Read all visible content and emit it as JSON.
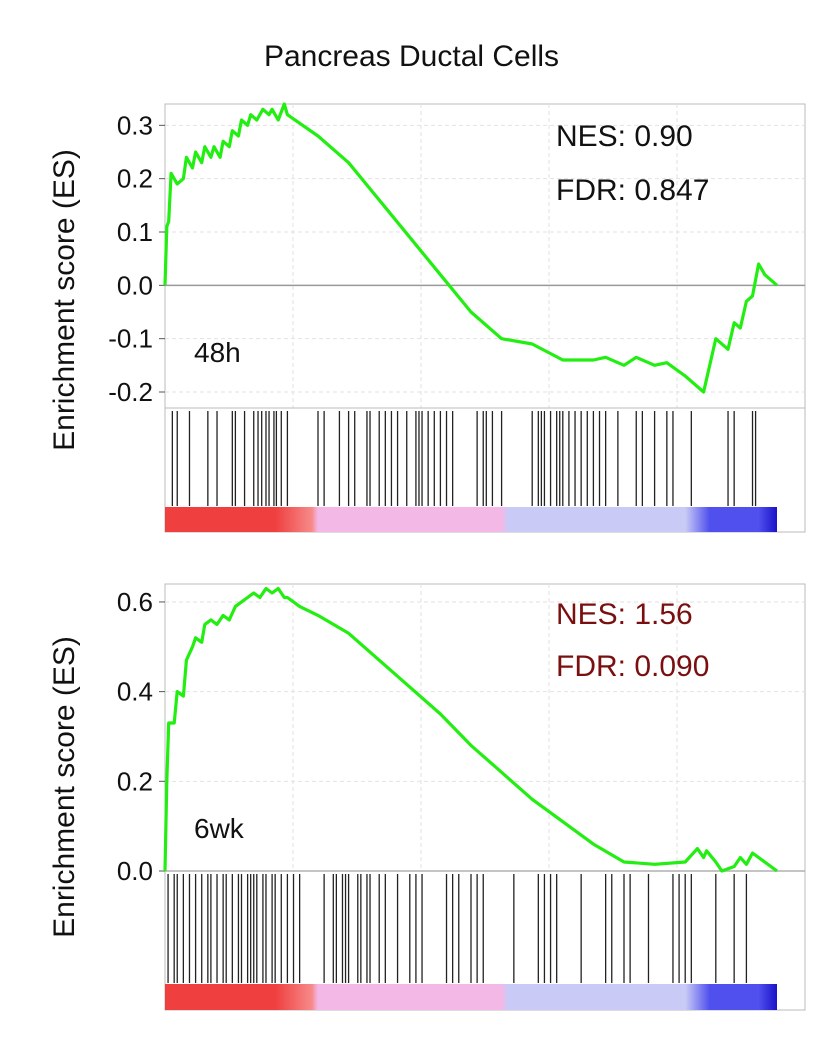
{
  "figure": {
    "title": "Pancreas Ductal Cells"
  },
  "colors": {
    "curve": "#22ee11",
    "hit": "#222222",
    "zero_line": "#9a9a9a",
    "grid": "#e2e2e2",
    "frame": "#bbbbbb",
    "annotation_gray": "#111111",
    "annotation_red": "#7a0f0f",
    "ramp": [
      "#ef3f3f",
      "#f78a8a",
      "#f4b8e6",
      "#c9cbf6",
      "#5050ee",
      "#1a12c8"
    ]
  },
  "chart_data": [
    {
      "type": "line",
      "label": "48h",
      "ylabel": "Enrichment score (ES)",
      "ylim": [
        -0.23,
        0.34
      ],
      "xlim": [
        0,
        1
      ],
      "yticks": [
        {
          "v": 0.3,
          "t": "0.3"
        },
        {
          "v": 0.2,
          "t": "0.2"
        },
        {
          "v": 0.1,
          "t": "0.1"
        },
        {
          "v": 0.0,
          "t": "0.0"
        },
        {
          "v": -0.1,
          "t": "-0.1"
        },
        {
          "v": -0.2,
          "t": "-0.2"
        }
      ],
      "grid": true,
      "annotations": {
        "nes": "NES: 0.90",
        "fdr": "FDR: 0.847",
        "color": "gray"
      },
      "series": [
        {
          "x": [
            0.0,
            0.003,
            0.006,
            0.01,
            0.02,
            0.03,
            0.035,
            0.045,
            0.05,
            0.06,
            0.065,
            0.075,
            0.08,
            0.09,
            0.095,
            0.105,
            0.11,
            0.12,
            0.125,
            0.135,
            0.14,
            0.15,
            0.16,
            0.17,
            0.175,
            0.185,
            0.195,
            0.2,
            0.25,
            0.3,
            0.35,
            0.4,
            0.45,
            0.5,
            0.55,
            0.6,
            0.65,
            0.7,
            0.72,
            0.75,
            0.77,
            0.8,
            0.82,
            0.85,
            0.88,
            0.9,
            0.92,
            0.93,
            0.94,
            0.95,
            0.96,
            0.97,
            0.98,
            1.0
          ],
          "y": [
            0.0,
            0.11,
            0.12,
            0.21,
            0.19,
            0.2,
            0.24,
            0.22,
            0.25,
            0.23,
            0.26,
            0.24,
            0.26,
            0.24,
            0.27,
            0.26,
            0.29,
            0.28,
            0.31,
            0.3,
            0.32,
            0.31,
            0.33,
            0.32,
            0.33,
            0.31,
            0.34,
            0.32,
            0.28,
            0.23,
            0.16,
            0.09,
            0.02,
            -0.05,
            -0.1,
            -0.11,
            -0.14,
            -0.14,
            -0.135,
            -0.15,
            -0.135,
            -0.15,
            -0.145,
            -0.17,
            -0.2,
            -0.1,
            -0.12,
            -0.07,
            -0.08,
            -0.03,
            -0.02,
            0.04,
            0.02,
            0.0
          ]
        }
      ],
      "hits": [
        0.012,
        0.02,
        0.04,
        0.07,
        0.085,
        0.11,
        0.115,
        0.13,
        0.145,
        0.152,
        0.158,
        0.165,
        0.17,
        0.178,
        0.182,
        0.19,
        0.2,
        0.25,
        0.26,
        0.285,
        0.3,
        0.31,
        0.33,
        0.335,
        0.35,
        0.36,
        0.37,
        0.38,
        0.395,
        0.41,
        0.415,
        0.42,
        0.43,
        0.44,
        0.45,
        0.46,
        0.47,
        0.51,
        0.52,
        0.525,
        0.535,
        0.55,
        0.6,
        0.61,
        0.615,
        0.62,
        0.63,
        0.64,
        0.645,
        0.65,
        0.66,
        0.67,
        0.68,
        0.69,
        0.7,
        0.71,
        0.72,
        0.74,
        0.77,
        0.78,
        0.8,
        0.82,
        0.83,
        0.86,
        0.92,
        0.93,
        0.96,
        0.965
      ]
    },
    {
      "type": "line",
      "label": "6wk",
      "ylabel": "Enrichment score (ES)",
      "ylim": [
        0.0,
        0.64
      ],
      "xlim": [
        0,
        1
      ],
      "yticks": [
        {
          "v": 0.6,
          "t": "0.6"
        },
        {
          "v": 0.4,
          "t": "0.4"
        },
        {
          "v": 0.2,
          "t": "0.2"
        },
        {
          "v": 0.0,
          "t": "0.0"
        }
      ],
      "grid": true,
      "annotations": {
        "nes": "NES: 1.56",
        "fdr": "FDR: 0.090",
        "color": "red"
      },
      "series": [
        {
          "x": [
            0.0,
            0.003,
            0.006,
            0.015,
            0.02,
            0.03,
            0.035,
            0.045,
            0.05,
            0.06,
            0.065,
            0.075,
            0.085,
            0.095,
            0.105,
            0.115,
            0.125,
            0.135,
            0.145,
            0.155,
            0.165,
            0.175,
            0.185,
            0.195,
            0.2,
            0.21,
            0.22,
            0.25,
            0.3,
            0.35,
            0.4,
            0.45,
            0.5,
            0.55,
            0.6,
            0.65,
            0.7,
            0.75,
            0.8,
            0.85,
            0.87,
            0.88,
            0.885,
            0.9,
            0.91,
            0.93,
            0.94,
            0.95,
            0.96,
            0.97,
            1.0
          ],
          "y": [
            0.0,
            0.2,
            0.33,
            0.33,
            0.4,
            0.39,
            0.47,
            0.5,
            0.52,
            0.51,
            0.55,
            0.56,
            0.55,
            0.57,
            0.56,
            0.59,
            0.6,
            0.61,
            0.62,
            0.61,
            0.63,
            0.62,
            0.63,
            0.61,
            0.61,
            0.6,
            0.59,
            0.57,
            0.53,
            0.47,
            0.41,
            0.35,
            0.28,
            0.22,
            0.16,
            0.11,
            0.06,
            0.02,
            0.015,
            0.02,
            0.05,
            0.03,
            0.045,
            0.02,
            0.0,
            0.01,
            0.03,
            0.015,
            0.04,
            0.03,
            0.0
          ]
        }
      ],
      "hits": [
        0.005,
        0.015,
        0.02,
        0.03,
        0.04,
        0.05,
        0.06,
        0.07,
        0.075,
        0.085,
        0.095,
        0.1,
        0.11,
        0.12,
        0.125,
        0.135,
        0.14,
        0.145,
        0.15,
        0.16,
        0.165,
        0.175,
        0.18,
        0.19,
        0.2,
        0.21,
        0.22,
        0.26,
        0.275,
        0.28,
        0.29,
        0.295,
        0.3,
        0.315,
        0.32,
        0.33,
        0.335,
        0.35,
        0.36,
        0.38,
        0.4,
        0.41,
        0.42,
        0.46,
        0.47,
        0.48,
        0.5,
        0.51,
        0.52,
        0.57,
        0.61,
        0.62,
        0.63,
        0.64,
        0.68,
        0.72,
        0.73,
        0.75,
        0.76,
        0.79,
        0.83,
        0.84,
        0.85,
        0.86,
        0.9,
        0.93,
        0.95
      ]
    }
  ]
}
